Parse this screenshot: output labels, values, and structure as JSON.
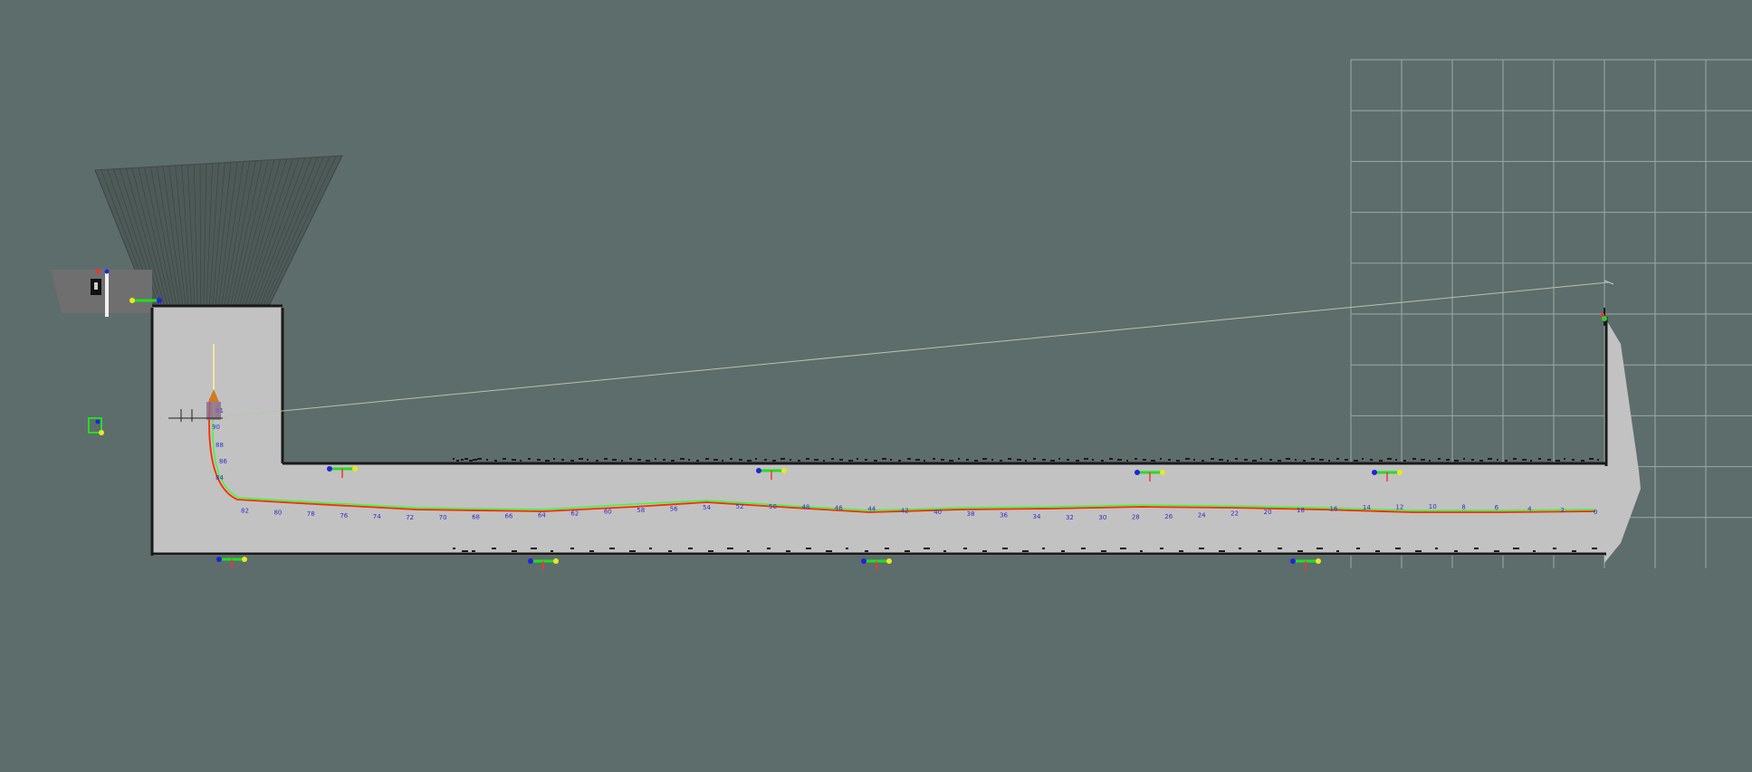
{
  "view": {
    "background_color": "#5d6d6b",
    "map_free_color": "#c2c2c2",
    "map_wall_color": "#1a1a1a",
    "grid_color": "#9aaaa6",
    "trajectory_colors": {
      "planned": "#ff2a00",
      "actual": "#33ff33"
    },
    "pose_label_color": "#3030c8"
  },
  "pose_labels": [
    "0",
    "2",
    "4",
    "6",
    "8",
    "10",
    "12",
    "14",
    "16",
    "18",
    "20",
    "22",
    "24",
    "26",
    "28",
    "30",
    "32",
    "34",
    "36",
    "38",
    "40",
    "42",
    "44",
    "46",
    "48",
    "50",
    "52",
    "54",
    "56",
    "58",
    "60",
    "62",
    "64",
    "66",
    "68",
    "70",
    "72",
    "74",
    "76",
    "78",
    "80",
    "82"
  ],
  "extra_labels": [
    "84",
    "86",
    "88",
    "90",
    "91"
  ],
  "landmarks": [
    {
      "name": "landmark-top-1",
      "icon": "axis-frame-icon"
    },
    {
      "name": "landmark-top-2",
      "icon": "axis-frame-icon"
    },
    {
      "name": "landmark-top-3",
      "icon": "axis-frame-icon"
    },
    {
      "name": "landmark-top-4",
      "icon": "axis-frame-icon"
    },
    {
      "name": "landmark-bottom-1",
      "icon": "axis-frame-icon"
    },
    {
      "name": "landmark-bottom-2",
      "icon": "axis-frame-icon"
    },
    {
      "name": "landmark-bottom-3",
      "icon": "axis-frame-icon"
    },
    {
      "name": "landmark-bottom-4",
      "icon": "axis-frame-icon"
    }
  ]
}
